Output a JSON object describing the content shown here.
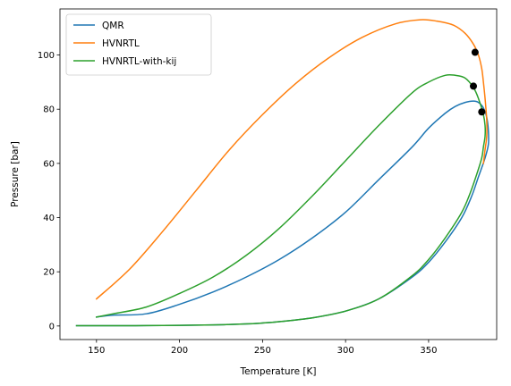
{
  "chart_data": {
    "type": "line",
    "title": "",
    "xlabel": "Temperature [K]",
    "ylabel": "Pressure [bar]",
    "xlim": [
      128,
      391
    ],
    "ylim": [
      -5,
      117
    ],
    "xticks": [
      150,
      200,
      250,
      300,
      350
    ],
    "yticks": [
      0,
      20,
      40,
      60,
      80,
      100
    ],
    "grid": false,
    "legend_position": "top-left",
    "series": [
      {
        "name": "QMR",
        "color": "#1f77b4",
        "x": [
          138,
          160,
          180,
          200,
          220,
          240,
          250,
          260,
          280,
          300,
          320,
          340,
          350,
          360,
          370,
          376,
          380,
          384,
          386,
          386,
          385,
          383,
          380,
          377,
          372,
          366,
          360,
          350,
          340,
          320,
          300,
          280,
          260,
          240,
          220,
          200,
          180,
          160,
          150
        ],
        "y": [
          0.1,
          0.1,
          0.15,
          0.25,
          0.4,
          0.75,
          1.1,
          1.6,
          3.0,
          5.5,
          10.0,
          18.0,
          23.5,
          31.0,
          40.0,
          48.0,
          55.0,
          62.0,
          67.0,
          72.0,
          77.0,
          80.5,
          82.5,
          83.0,
          82.5,
          81.0,
          78.5,
          73.0,
          66.0,
          54.0,
          42.0,
          32.5,
          24.5,
          18.0,
          12.5,
          8.0,
          4.5,
          4.0,
          3.3
        ]
      },
      {
        "name": "HVNRTL",
        "color": "#ff7f0e",
        "x": [
          150,
          170,
          190,
          210,
          230,
          250,
          270,
          290,
          310,
          330,
          345,
          355,
          365,
          372,
          377,
          380,
          382,
          383,
          384,
          385,
          385,
          384,
          383
        ],
        "y": [
          10.0,
          21.0,
          35.0,
          50.0,
          65.0,
          78.0,
          89.5,
          99.0,
          106.5,
          111.5,
          113.0,
          112.5,
          111.0,
          108.0,
          104.0,
          100.0,
          95.0,
          90.0,
          84.0,
          76.0,
          70.0,
          65.0,
          60.0
        ]
      },
      {
        "name": "HVNRTL-with-kij",
        "color": "#2ca02c",
        "x": [
          138,
          160,
          180,
          200,
          220,
          240,
          250,
          260,
          280,
          300,
          320,
          340,
          350,
          360,
          370,
          375,
          379,
          382,
          383,
          384,
          384,
          383,
          380,
          377,
          372,
          366,
          360,
          350,
          340,
          320,
          300,
          280,
          260,
          240,
          220,
          200,
          180,
          160,
          150
        ],
        "y": [
          0.1,
          0.1,
          0.15,
          0.25,
          0.4,
          0.75,
          1.1,
          1.6,
          3.0,
          5.5,
          10.0,
          18.5,
          24.5,
          32.5,
          42.0,
          49.0,
          56.0,
          62.0,
          66.0,
          70.0,
          74.0,
          78.0,
          84.0,
          88.0,
          91.5,
          92.5,
          92.5,
          90.0,
          86.0,
          74.0,
          61.0,
          48.0,
          36.0,
          26.0,
          18.0,
          12.0,
          7.0,
          4.5,
          3.3
        ]
      }
    ],
    "critical_points": {
      "color": "#000000",
      "x": [
        378,
        377,
        382
      ],
      "y": [
        101,
        88.5,
        79
      ]
    }
  }
}
